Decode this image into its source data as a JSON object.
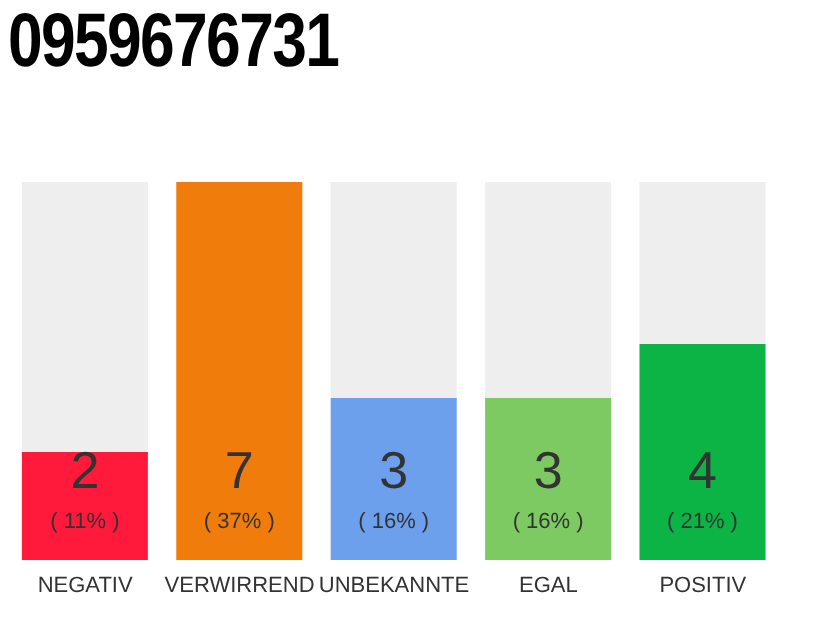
{
  "chart_data": {
    "type": "bar",
    "title": "0959676731",
    "categories": [
      "NEGATIV",
      "VERWIRREND",
      "UNBEKANNTE",
      "EGAL",
      "POSITIV"
    ],
    "values": [
      2,
      7,
      3,
      3,
      4
    ],
    "colors": [
      "#ff1a3c",
      "#f07d0b",
      "#6ca0ec",
      "#7dc962",
      "#0bb444"
    ],
    "value_labels": [
      "2\n( 11% )",
      "7\n( 37% )",
      "3\n( 16% )",
      "3\n( 16% )",
      "4\n( 21% )"
    ]
  }
}
